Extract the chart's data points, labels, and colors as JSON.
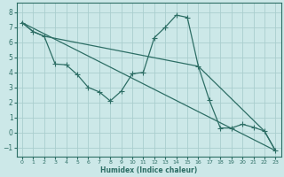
{
  "xlabel": "Humidex (Indice chaleur)",
  "bg_color": "#cce8e8",
  "line_color": "#2d6e65",
  "grid_color": "#aacece",
  "xlim": [
    -0.5,
    23.5
  ],
  "ylim": [
    -1.6,
    8.6
  ],
  "xticks": [
    0,
    1,
    2,
    3,
    4,
    5,
    6,
    7,
    8,
    9,
    10,
    11,
    12,
    13,
    14,
    15,
    16,
    17,
    18,
    19,
    20,
    21,
    22,
    23
  ],
  "yticks": [
    -1,
    0,
    1,
    2,
    3,
    4,
    5,
    6,
    7,
    8
  ],
  "line_main": {
    "x": [
      0,
      1,
      2,
      3,
      4,
      5,
      6,
      7,
      8,
      9,
      10,
      11,
      12,
      13,
      14,
      15,
      16,
      17,
      18,
      19,
      20,
      21,
      22,
      23
    ],
    "y": [
      7.3,
      6.7,
      6.4,
      4.55,
      4.5,
      3.85,
      3.0,
      2.7,
      2.1,
      2.75,
      3.9,
      4.0,
      6.3,
      7.0,
      7.8,
      7.65,
      4.4,
      2.15,
      0.3,
      0.3,
      0.55,
      0.35,
      0.1,
      -1.2
    ]
  },
  "line_upper": {
    "x": [
      0,
      1,
      2,
      16,
      22,
      23
    ],
    "y": [
      7.3,
      6.7,
      6.4,
      4.4,
      0.1,
      -1.2
    ]
  },
  "line_diagonal": {
    "x": [
      0,
      23
    ],
    "y": [
      7.3,
      -1.2
    ]
  }
}
